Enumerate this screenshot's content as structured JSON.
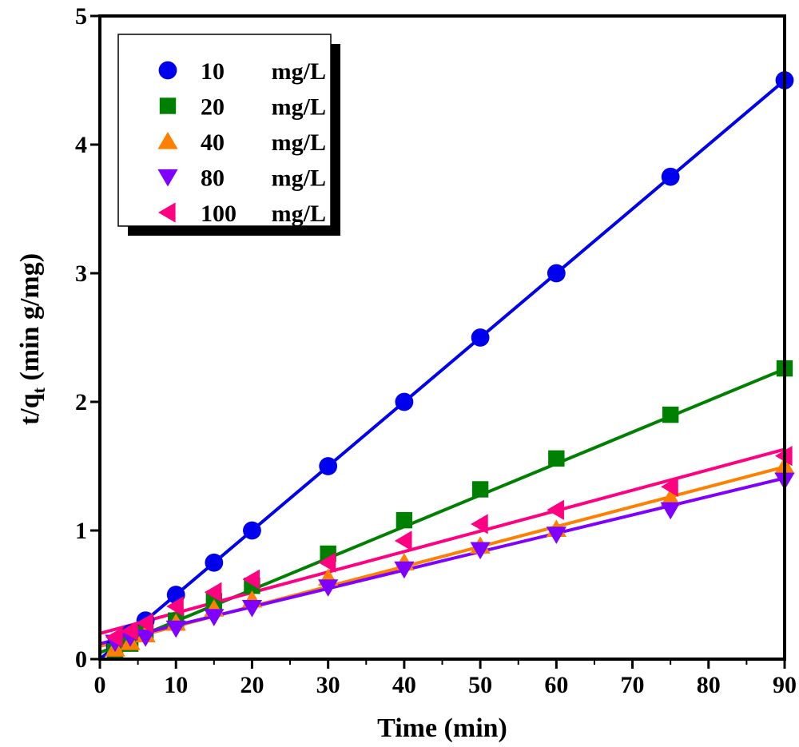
{
  "chart_data": {
    "type": "scatter",
    "title": "",
    "xlabel": "Time (min)",
    "ylabel_main": "t/q",
    "ylabel_sub": "t",
    "ylabel_rest": " (min g/mg)",
    "xlim": [
      0,
      90
    ],
    "ylim": [
      0,
      5
    ],
    "xticks": [
      0,
      10,
      20,
      30,
      40,
      50,
      60,
      70,
      80,
      90
    ],
    "xminor_step": 5,
    "yticks": [
      0,
      1,
      2,
      3,
      4,
      5
    ],
    "grid": false,
    "legend_position": "top-left",
    "x": [
      2,
      4,
      6,
      10,
      15,
      20,
      30,
      40,
      50,
      60,
      75,
      90
    ],
    "series": [
      {
        "name": "10",
        "unit": "mg/L",
        "color": "#0000ee",
        "marker": "circle",
        "values": [
          0.1,
          0.2,
          0.3,
          0.5,
          0.75,
          1.0,
          1.5,
          2.0,
          2.5,
          3.0,
          3.75,
          4.5
        ],
        "fit": {
          "intercept": 0.0,
          "slope": 0.05
        }
      },
      {
        "name": "20",
        "unit": "mg/L",
        "color": "#008000",
        "marker": "square",
        "values": [
          0.06,
          0.12,
          0.2,
          0.3,
          0.45,
          0.57,
          0.82,
          1.08,
          1.32,
          1.56,
          1.9,
          2.26
        ],
        "fit": {
          "intercept": 0.05,
          "slope": 0.0245
        }
      },
      {
        "name": "40",
        "unit": "mg/L",
        "color": "#ff8000",
        "marker": "triangle-up",
        "values": [
          0.08,
          0.13,
          0.19,
          0.28,
          0.39,
          0.46,
          0.63,
          0.75,
          0.88,
          1.01,
          1.25,
          1.5
        ],
        "fit": {
          "intercept": 0.1,
          "slope": 0.0155
        }
      },
      {
        "name": "80",
        "unit": "mg/L",
        "color": "#8000ff",
        "marker": "triangle-down",
        "values": [
          0.13,
          0.17,
          0.17,
          0.24,
          0.33,
          0.4,
          0.56,
          0.7,
          0.85,
          0.97,
          1.16,
          1.39
        ],
        "fit": {
          "intercept": 0.12,
          "slope": 0.0143
        }
      },
      {
        "name": "100",
        "unit": "mg/L",
        "color": "#ff0080",
        "marker": "triangle-left",
        "values": [
          0.17,
          0.22,
          0.28,
          0.41,
          0.52,
          0.62,
          0.75,
          0.92,
          1.05,
          1.16,
          1.34,
          1.58
        ],
        "fit": {
          "intercept": 0.2,
          "slope": 0.0159
        }
      }
    ]
  }
}
